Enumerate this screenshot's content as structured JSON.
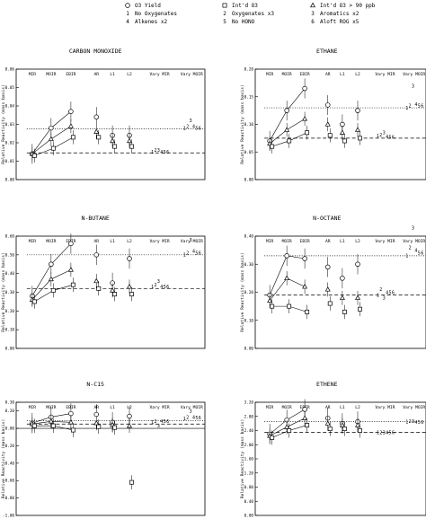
{
  "legend": [
    {
      "symbol": "circle",
      "label": "O3 Yield"
    },
    {
      "symbol": "square",
      "label": "Int'd O3"
    },
    {
      "symbol": "triangle",
      "label": "Int'd O3 > 90 ppb"
    },
    {
      "symbol": "1",
      "label": "No Oxygenates"
    },
    {
      "symbol": "2",
      "label": "Oxygenates x3"
    },
    {
      "symbol": "3",
      "label": "Aromatics x2"
    },
    {
      "symbol": "4",
      "label": "Alkenes x2"
    },
    {
      "symbol": "5",
      "label": "No HONO"
    },
    {
      "symbol": "6",
      "label": "Aloft ROG x5"
    }
  ],
  "columns": [
    "MIR",
    "MOIR",
    "EBIR",
    "AR",
    "L1",
    "L2",
    "Vary MIR",
    "Vary MOIR"
  ],
  "y_axis_label": "Relative Reactivity (mass basis)",
  "chart_data": [
    {
      "type": "scatter",
      "title": "CARBON MONOXIDE",
      "ylim": [
        0,
        0.06
      ],
      "yticks": [
        "0.00",
        "0.01",
        "0.02",
        "0.03",
        "0.04",
        "0.05",
        "0.06"
      ],
      "ref_dotted": 0.0275,
      "ref_dashed": 0.0145,
      "series": [
        {
          "marker": "circle",
          "points": [
            {
              "x": 0,
              "y": 0.014
            },
            {
              "x": 1,
              "y": 0.028
            },
            {
              "x": 2,
              "y": 0.037
            },
            {
              "x": 3,
              "y": 0.034
            },
            {
              "x": 4,
              "y": 0.024
            },
            {
              "x": 5,
              "y": 0.024
            }
          ]
        },
        {
          "marker": "triangle",
          "points": [
            {
              "x": 0,
              "y": 0.014
            },
            {
              "x": 1,
              "y": 0.022
            },
            {
              "x": 2,
              "y": 0.029
            },
            {
              "x": 3,
              "y": 0.026
            },
            {
              "x": 4,
              "y": 0.021
            },
            {
              "x": 5,
              "y": 0.021
            }
          ]
        },
        {
          "marker": "square",
          "points": [
            {
              "x": 0,
              "y": 0.013
            },
            {
              "x": 1,
              "y": 0.017
            },
            {
              "x": 2,
              "y": 0.023
            },
            {
              "x": 3,
              "y": 0.023
            },
            {
              "x": 4,
              "y": 0.018
            },
            {
              "x": 5,
              "y": 0.018
            }
          ]
        }
      ],
      "scenarios_mir": [
        0.015,
        0.016,
        0.016,
        0.015,
        0.015,
        0.015
      ],
      "scenarios_moir": [
        0.028,
        0.029,
        0.032,
        0.029,
        0.028,
        0.028
      ]
    },
    {
      "type": "scatter",
      "title": "ETHANE",
      "ylim": [
        0,
        0.2
      ],
      "yticks": [
        "0.00",
        "0.05",
        "0.10",
        "0.15",
        "0.20"
      ],
      "ref_dotted": 0.13,
      "ref_dashed": 0.075,
      "series": [
        {
          "marker": "circle",
          "points": [
            {
              "x": 0,
              "y": 0.07
            },
            {
              "x": 1,
              "y": 0.125
            },
            {
              "x": 2,
              "y": 0.165
            },
            {
              "x": 3,
              "y": 0.135
            },
            {
              "x": 4,
              "y": 0.1
            },
            {
              "x": 5,
              "y": 0.125
            }
          ]
        },
        {
          "marker": "triangle",
          "points": [
            {
              "x": 0,
              "y": 0.065
            },
            {
              "x": 1,
              "y": 0.09
            },
            {
              "x": 2,
              "y": 0.11
            },
            {
              "x": 3,
              "y": 0.1
            },
            {
              "x": 4,
              "y": 0.085
            },
            {
              "x": 5,
              "y": 0.09
            }
          ]
        },
        {
          "marker": "square",
          "points": [
            {
              "x": 0,
              "y": 0.06
            },
            {
              "x": 1,
              "y": 0.07
            },
            {
              "x": 2,
              "y": 0.085
            },
            {
              "x": 3,
              "y": 0.08
            },
            {
              "x": 4,
              "y": 0.07
            },
            {
              "x": 5,
              "y": 0.075
            }
          ]
        }
      ],
      "scenarios_mir": [
        0.079,
        0.081,
        0.085,
        0.078,
        0.077,
        0.077
      ],
      "scenarios_moir": [
        0.13,
        0.134,
        0.17,
        0.136,
        0.134,
        0.134
      ]
    },
    {
      "type": "scatter",
      "title": "N-BUTANE",
      "ylim": [
        0,
        0.6
      ],
      "yticks": [
        "0.00",
        "0.10",
        "0.20",
        "0.30",
        "0.40",
        "0.50",
        "0.60"
      ],
      "ref_dotted": 0.5,
      "ref_dashed": 0.32,
      "series": [
        {
          "marker": "circle",
          "points": [
            {
              "x": 0,
              "y": 0.28
            },
            {
              "x": 1,
              "y": 0.45
            },
            {
              "x": 2,
              "y": 0.56
            },
            {
              "x": 3,
              "y": 0.5
            },
            {
              "x": 4,
              "y": 0.35
            },
            {
              "x": 5,
              "y": 0.48
            }
          ]
        },
        {
          "marker": "triangle",
          "points": [
            {
              "x": 0,
              "y": 0.26
            },
            {
              "x": 1,
              "y": 0.37
            },
            {
              "x": 2,
              "y": 0.42
            },
            {
              "x": 3,
              "y": 0.36
            },
            {
              "x": 4,
              "y": 0.31
            },
            {
              "x": 5,
              "y": 0.33
            }
          ]
        },
        {
          "marker": "square",
          "points": [
            {
              "x": 0,
              "y": 0.25
            },
            {
              "x": 1,
              "y": 0.31
            },
            {
              "x": 2,
              "y": 0.34
            },
            {
              "x": 3,
              "y": 0.32
            },
            {
              "x": 4,
              "y": 0.29
            },
            {
              "x": 5,
              "y": 0.29
            }
          ]
        }
      ],
      "scenarios_mir": [
        0.33,
        0.34,
        0.36,
        0.33,
        0.33,
        0.33
      ],
      "scenarios_moir": [
        0.5,
        0.51,
        0.58,
        0.52,
        0.51,
        0.51
      ]
    },
    {
      "type": "scatter",
      "title": "N-OCTANE",
      "ylim": [
        0,
        0.4
      ],
      "yticks": [
        "0.00",
        "0.10",
        "0.20",
        "0.30",
        "0.40"
      ],
      "ref_dotted": 0.33,
      "ref_dashed": 0.19,
      "series": [
        {
          "marker": "circle",
          "points": [
            {
              "x": 0,
              "y": 0.19
            },
            {
              "x": 1,
              "y": 0.33
            },
            {
              "x": 2,
              "y": 0.32
            },
            {
              "x": 3,
              "y": 0.29
            },
            {
              "x": 4,
              "y": 0.25
            },
            {
              "x": 5,
              "y": 0.3
            }
          ]
        },
        {
          "marker": "triangle",
          "points": [
            {
              "x": 0,
              "y": 0.17
            },
            {
              "x": 1,
              "y": 0.25
            },
            {
              "x": 2,
              "y": 0.22
            },
            {
              "x": 3,
              "y": 0.21
            },
            {
              "x": 4,
              "y": 0.18
            },
            {
              "x": 5,
              "y": 0.18
            }
          ]
        },
        {
          "marker": "square",
          "points": [
            {
              "x": 0,
              "y": 0.15
            },
            {
              "x": 1,
              "y": 0.15
            },
            {
              "x": 2,
              "y": 0.13
            },
            {
              "x": 3,
              "y": 0.16
            },
            {
              "x": 4,
              "y": 0.13
            },
            {
              "x": 5,
              "y": 0.14
            }
          ]
        }
      ],
      "scenarios_mir": [
        0.19,
        0.21,
        0.18,
        0.2,
        0.2,
        0.2
      ],
      "scenarios_moir": [
        0.33,
        0.36,
        0.43,
        0.35,
        0.34,
        0.34
      ]
    },
    {
      "type": "scatter",
      "title": "N-C15",
      "ylim": [
        -1.0,
        0.3
      ],
      "yticks": [
        "-1.00",
        "-0.80",
        "-0.60",
        "-0.40",
        "-0.20",
        "0.00",
        "0.20",
        "0.30"
      ],
      "ref_dotted": 0.09,
      "ref_dashed": 0.05,
      "series": [
        {
          "marker": "circle",
          "points": [
            {
              "x": 0,
              "y": 0.06
            },
            {
              "x": 1,
              "y": 0.13
            },
            {
              "x": 2,
              "y": 0.17
            },
            {
              "x": 3,
              "y": 0.16
            },
            {
              "x": 4,
              "y": 0.07
            },
            {
              "x": 5,
              "y": 0.14
            }
          ]
        },
        {
          "marker": "triangle",
          "points": [
            {
              "x": 0,
              "y": 0.05
            },
            {
              "x": 1,
              "y": 0.08
            },
            {
              "x": 2,
              "y": 0.07
            },
            {
              "x": 3,
              "y": 0.06
            },
            {
              "x": 4,
              "y": 0.04
            },
            {
              "x": 5,
              "y": 0.03
            }
          ]
        },
        {
          "marker": "square",
          "points": [
            {
              "x": 0,
              "y": 0.03
            },
            {
              "x": 1,
              "y": 0.03
            },
            {
              "x": 2,
              "y": -0.02
            },
            {
              "x": 3,
              "y": 0.02
            },
            {
              "x": 4,
              "y": 0.01
            },
            {
              "x": 5,
              "y": -0.62
            }
          ]
        }
      ],
      "scenarios_mir": [
        0.07,
        0.08,
        0.03,
        0.08,
        0.08,
        0.08
      ],
      "scenarios_moir": [
        0.11,
        0.13,
        0.2,
        0.13,
        0.12,
        0.12
      ]
    },
    {
      "type": "scatter",
      "title": "ETHENE",
      "ylim": [
        0,
        3.2
      ],
      "yticks": [
        "0.00",
        "0.40",
        "0.80",
        "1.20",
        "1.60",
        "2.00",
        "2.40",
        "2.80",
        "3.20"
      ],
      "ref_dotted": 2.65,
      "ref_dashed": 2.35,
      "series": [
        {
          "marker": "circle",
          "points": [
            {
              "x": 0,
              "y": 2.3
            },
            {
              "x": 1,
              "y": 2.7
            },
            {
              "x": 2,
              "y": 3.0
            },
            {
              "x": 3,
              "y": 2.75
            },
            {
              "x": 4,
              "y": 2.6
            },
            {
              "x": 5,
              "y": 2.65
            }
          ]
        },
        {
          "marker": "triangle",
          "points": [
            {
              "x": 0,
              "y": 2.25
            },
            {
              "x": 1,
              "y": 2.5
            },
            {
              "x": 2,
              "y": 2.75
            },
            {
              "x": 3,
              "y": 2.6
            },
            {
              "x": 4,
              "y": 2.55
            },
            {
              "x": 5,
              "y": 2.55
            }
          ]
        },
        {
          "marker": "square",
          "points": [
            {
              "x": 0,
              "y": 2.2
            },
            {
              "x": 1,
              "y": 2.4
            },
            {
              "x": 2,
              "y": 2.55
            },
            {
              "x": 3,
              "y": 2.45
            },
            {
              "x": 4,
              "y": 2.45
            },
            {
              "x": 5,
              "y": 2.4
            }
          ]
        }
      ],
      "scenarios_mir": [
        2.35,
        2.35,
        2.35,
        2.35,
        2.35,
        2.35
      ],
      "scenarios_moir": [
        2.65,
        2.66,
        2.66,
        2.64,
        2.63,
        2.63
      ]
    }
  ]
}
